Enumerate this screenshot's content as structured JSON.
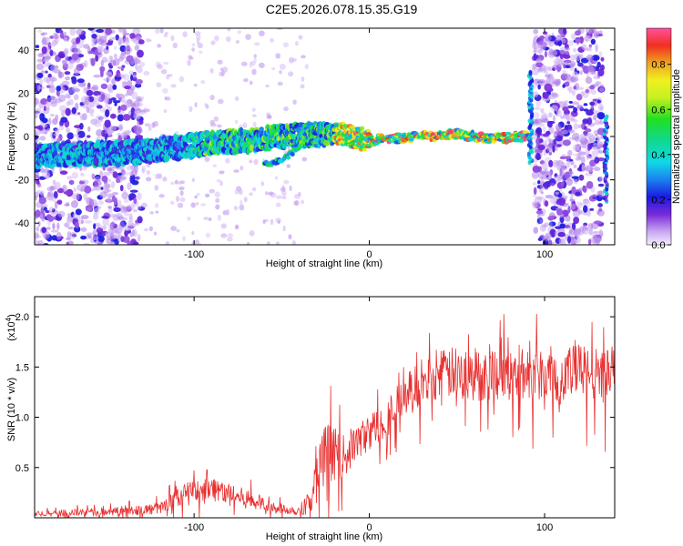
{
  "title": "C2E5.2026.078.15.35.G19",
  "chart_data": [
    {
      "type": "heatmap",
      "xlabel": "Height of straight line (km)",
      "ylabel": "Frequency (Hz)",
      "xlim": [
        -191,
        140
      ],
      "ylim": [
        -50,
        50
      ],
      "xticks": [
        -100,
        0,
        100
      ],
      "yticks": [
        -40,
        -20,
        0,
        20,
        40
      ],
      "colorbar": {
        "label": "Normalized spectral amplitude",
        "range": [
          0.0,
          0.96
        ],
        "ticks": [
          "0.0",
          "0.2",
          "0.4",
          "0.6",
          "0.8"
        ],
        "tick_values": [
          0.0,
          0.2,
          0.4,
          0.6,
          0.8
        ]
      },
      "ridge": [
        {
          "x": -190,
          "y": -9
        },
        {
          "x": -170,
          "y": -8
        },
        {
          "x": -150,
          "y": -8
        },
        {
          "x": -130,
          "y": -7
        },
        {
          "x": -110,
          "y": -5
        },
        {
          "x": -90,
          "y": -3
        },
        {
          "x": -70,
          "y": -2
        },
        {
          "x": -50,
          "y": 0
        },
        {
          "x": -30,
          "y": 1
        },
        {
          "x": -15,
          "y": 1
        },
        {
          "x": 0,
          "y": -2
        },
        {
          "x": 10,
          "y": -1
        },
        {
          "x": 30,
          "y": 0
        },
        {
          "x": 50,
          "y": 1
        },
        {
          "x": 70,
          "y": -1
        },
        {
          "x": 88,
          "y": 0
        }
      ],
      "branch": [
        {
          "x": -60,
          "y": -13
        },
        {
          "x": -50,
          "y": -11
        },
        {
          "x": -40,
          "y": -5
        },
        {
          "x": -30,
          "y": -1
        }
      ],
      "noisy_regions": [
        [
          -191,
          -130
        ],
        [
          94,
          133
        ]
      ]
    },
    {
      "type": "line",
      "xlabel": "Height of straight line (km)",
      "ylabel": "SNR (10 * v/v)",
      "multiplier_label": "(x10",
      "multiplier_exp": "4",
      "xlim": [
        -191,
        140
      ],
      "ylim": [
        0,
        22000
      ],
      "xticks": [
        -100,
        0,
        100
      ],
      "yticks": [
        5000,
        10000,
        15000,
        20000
      ],
      "ytick_labels": [
        "0.5",
        "1.0",
        "1.5",
        "2.0"
      ],
      "color": "#e83030",
      "series": {
        "name": "SNR",
        "x": [
          -191,
          -150,
          -120,
          -105,
          -90,
          -80,
          -65,
          -50,
          -40,
          -33,
          -30,
          -25,
          -20,
          -15,
          -10,
          -5,
          0,
          10,
          20,
          30,
          40,
          50,
          60,
          70,
          80,
          90,
          100,
          110,
          120,
          130,
          140
        ],
        "mean": [
          400,
          600,
          900,
          2500,
          3000,
          2400,
          1600,
          900,
          700,
          2000,
          4000,
          6500,
          6500,
          6000,
          7000,
          7800,
          8500,
          10000,
          12000,
          13500,
          14200,
          14500,
          14000,
          14500,
          14200,
          14300,
          14500,
          14200,
          14600,
          14300,
          14500
        ],
        "amp": [
          300,
          400,
          600,
          1000,
          1300,
          1100,
          900,
          500,
          500,
          1500,
          2500,
          3000,
          2800,
          2200,
          2000,
          1800,
          1800,
          2000,
          2200,
          2400,
          2500,
          2600,
          2600,
          2700,
          2700,
          2700,
          2800,
          2800,
          2800,
          2800,
          2800
        ],
        "n": 1100
      }
    }
  ]
}
